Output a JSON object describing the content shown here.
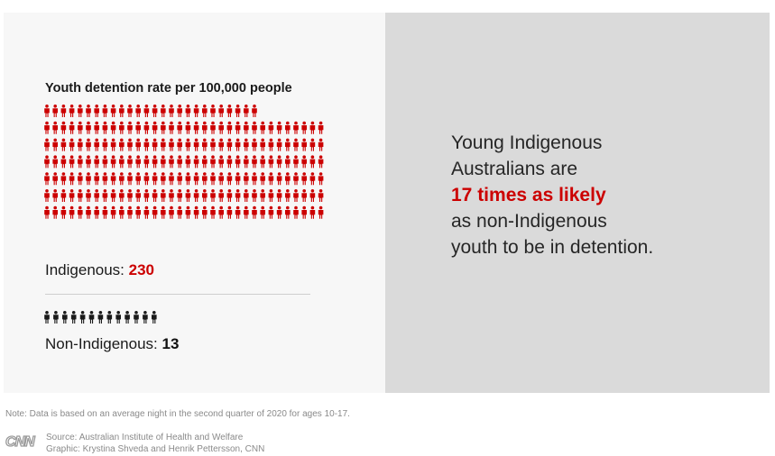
{
  "title": "Youth detention rate per 100,000 people",
  "chart_data": {
    "type": "pictogram",
    "title": "Youth detention rate per 100,000 people",
    "units_per_icon": 1,
    "series": [
      {
        "name": "Indigenous",
        "value": 230,
        "color": "#cc0000"
      },
      {
        "name": "Non-Indigenous",
        "value": 13,
        "color": "#1a1a1a"
      }
    ]
  },
  "labels": {
    "indigenous_name": "Indigenous: ",
    "indigenous_value": "230",
    "non_indigenous_name": "Non-Indigenous: ",
    "non_indigenous_value": "13"
  },
  "headline": {
    "line1": "Young Indigenous",
    "line2": "Australians are",
    "accent": "17 times as likely",
    "line4": "as non-Indigenous",
    "line5": "youth to be in detention."
  },
  "note": "Note: Data is based on an average night in the second quarter of 2020 for ages 10-17.",
  "source": "Source: Australian Institute of Health and Welfare",
  "graphic": "Graphic: Krystina Shveda and Henrik Pettersson, CNN",
  "logo_text": "CNN",
  "colors": {
    "accent": "#cc0000",
    "right_panel": "#dadada",
    "left_panel": "#f7f7f7"
  }
}
